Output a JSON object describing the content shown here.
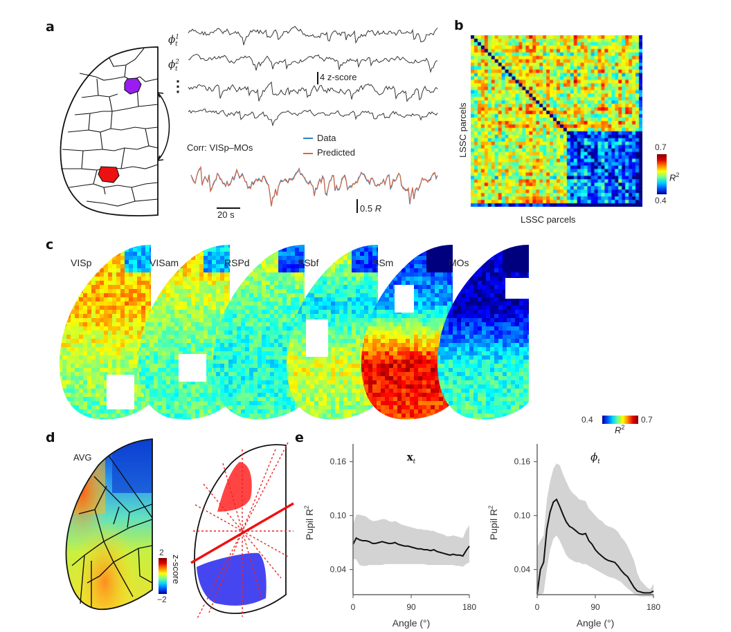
{
  "figure": {
    "panels": {
      "a": {
        "letter": "a",
        "latent_labels": [
          {
            "base": "ϕ",
            "sup": "1",
            "sub": "t"
          },
          {
            "base": "ϕ",
            "sup": "2",
            "sub": "t"
          }
        ],
        "ellipsis": "⋮",
        "zscore_scalebar": "4 z-score",
        "corr_title": "Corr: VISp–MOs",
        "legend": [
          {
            "label": "Data",
            "color": "#2f7fc1"
          },
          {
            "label": "Predicted",
            "color": "#e0663a"
          }
        ],
        "time_scalebar": "20 s",
        "r_scalebar": "0.5",
        "r_scalebar_unit": "R",
        "highlight_colors": {
          "source": "#9a1cf0",
          "target": "#ee1111"
        }
      },
      "b": {
        "letter": "b",
        "xlabel": "LSSC parcels",
        "ylabel": "LSSC parcels",
        "colorbar": {
          "max": "0.7",
          "min": "0.4",
          "label": "R",
          "label_sup": "2"
        }
      },
      "c": {
        "letter": "c",
        "maps": [
          "VISp",
          "VISam",
          "RSPd",
          "SSbf",
          "SSm",
          "MOs"
        ],
        "colorbar": {
          "min": "0.4",
          "max": "0.7",
          "label": "R",
          "label_sup": "2"
        }
      },
      "d": {
        "letter": "d",
        "map_label": "AVG",
        "colorbar": {
          "max": "2",
          "min": "−2",
          "label": "z-score"
        }
      },
      "e": {
        "letter": "e"
      }
    }
  },
  "chart_data": [
    {
      "type": "line",
      "title": "x_t",
      "title_base": "x",
      "title_sub": "t",
      "xlabel": "Angle (°)",
      "ylabel": "Pupil R",
      "ylabel_sup": "2",
      "xlim": [
        0,
        180
      ],
      "ylim": [
        0.012,
        0.172
      ],
      "xticks": [
        "0",
        "90",
        "180"
      ],
      "yticks": [
        "0.04",
        "0.10",
        "0.16"
      ],
      "x": [
        0,
        5,
        10,
        15,
        20,
        25,
        30,
        35,
        40,
        45,
        50,
        55,
        60,
        65,
        70,
        75,
        80,
        85,
        90,
        95,
        100,
        105,
        110,
        115,
        120,
        125,
        130,
        135,
        140,
        145,
        150,
        155,
        160,
        165,
        170,
        175,
        180
      ],
      "series": [
        {
          "name": "mean",
          "values": [
            0.068,
            0.075,
            0.073,
            0.072,
            0.072,
            0.071,
            0.069,
            0.069,
            0.07,
            0.071,
            0.07,
            0.069,
            0.069,
            0.07,
            0.068,
            0.067,
            0.066,
            0.066,
            0.065,
            0.064,
            0.063,
            0.063,
            0.062,
            0.062,
            0.061,
            0.062,
            0.06,
            0.059,
            0.058,
            0.057,
            0.056,
            0.057,
            0.056,
            0.056,
            0.055,
            0.061,
            0.066
          ]
        },
        {
          "name": "upper",
          "values": [
            0.09,
            0.101,
            0.101,
            0.1,
            0.099,
            0.096,
            0.094,
            0.094,
            0.095,
            0.096,
            0.096,
            0.094,
            0.093,
            0.094,
            0.092,
            0.09,
            0.089,
            0.088,
            0.087,
            0.086,
            0.085,
            0.085,
            0.084,
            0.084,
            0.083,
            0.083,
            0.081,
            0.08,
            0.079,
            0.077,
            0.077,
            0.078,
            0.077,
            0.076,
            0.075,
            0.084,
            0.089
          ]
        },
        {
          "name": "lower",
          "values": [
            0.052,
            0.051,
            0.045,
            0.044,
            0.044,
            0.045,
            0.045,
            0.045,
            0.045,
            0.045,
            0.046,
            0.046,
            0.046,
            0.046,
            0.046,
            0.046,
            0.046,
            0.046,
            0.046,
            0.046,
            0.046,
            0.046,
            0.046,
            0.045,
            0.045,
            0.045,
            0.045,
            0.045,
            0.045,
            0.045,
            0.045,
            0.045,
            0.044,
            0.044,
            0.043,
            0.046,
            0.048
          ]
        }
      ]
    },
    {
      "type": "line",
      "title": "ϕ_t",
      "title_base": "ϕ",
      "title_sub": "t",
      "xlabel": "Angle (°)",
      "ylabel": "Pupil R",
      "ylabel_sup": "2",
      "xlim": [
        0,
        180
      ],
      "ylim": [
        0.012,
        0.172
      ],
      "xticks": [
        "0",
        "90",
        "180"
      ],
      "yticks": [
        "0.04",
        "0.10",
        "0.16"
      ],
      "x": [
        0,
        5,
        10,
        15,
        20,
        25,
        30,
        35,
        40,
        45,
        50,
        55,
        60,
        65,
        70,
        75,
        80,
        85,
        90,
        95,
        100,
        105,
        110,
        115,
        120,
        125,
        130,
        135,
        140,
        145,
        150,
        155,
        160,
        165,
        170,
        175,
        180
      ],
      "series": [
        {
          "name": "mean",
          "values": [
            0.013,
            0.04,
            0.048,
            0.085,
            0.104,
            0.115,
            0.118,
            0.11,
            0.101,
            0.093,
            0.088,
            0.086,
            0.083,
            0.08,
            0.079,
            0.08,
            0.072,
            0.068,
            0.062,
            0.058,
            0.055,
            0.052,
            0.05,
            0.049,
            0.048,
            0.044,
            0.039,
            0.035,
            0.032,
            0.026,
            0.02,
            0.016,
            0.015,
            0.014,
            0.014,
            0.014,
            0.016
          ]
        },
        {
          "name": "upper",
          "values": [
            0.065,
            0.072,
            0.078,
            0.118,
            0.138,
            0.152,
            0.158,
            0.156,
            0.146,
            0.138,
            0.13,
            0.125,
            0.122,
            0.118,
            0.117,
            0.116,
            0.108,
            0.104,
            0.1,
            0.096,
            0.094,
            0.09,
            0.088,
            0.087,
            0.085,
            0.082,
            0.076,
            0.072,
            0.066,
            0.058,
            0.05,
            0.036,
            0.028,
            0.024,
            0.02,
            0.018,
            0.024
          ]
        },
        {
          "name": "lower",
          "values": [
            0.01,
            0.012,
            0.014,
            0.04,
            0.062,
            0.074,
            0.078,
            0.072,
            0.064,
            0.056,
            0.052,
            0.05,
            0.048,
            0.048,
            0.046,
            0.046,
            0.044,
            0.042,
            0.04,
            0.038,
            0.036,
            0.034,
            0.032,
            0.031,
            0.03,
            0.028,
            0.026,
            0.022,
            0.019,
            0.016,
            0.013,
            0.011,
            0.01,
            0.01,
            0.01,
            0.01,
            0.01
          ]
        }
      ]
    }
  ]
}
